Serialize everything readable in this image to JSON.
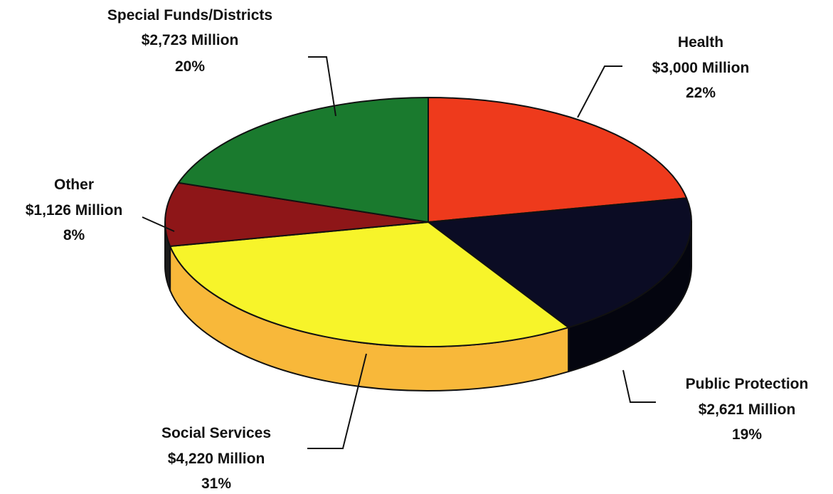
{
  "chart_data": {
    "type": "pie",
    "style": "3d",
    "categories": [
      "Health",
      "Public Protection",
      "Social Services",
      "Other",
      "Special Funds/Districts"
    ],
    "values": [
      3000,
      2621,
      4220,
      1126,
      2723
    ],
    "percents": [
      22,
      19,
      31,
      8,
      20
    ],
    "unit": "Million",
    "legend": "none",
    "colors": {
      "Health": "#ee3a1c",
      "Public Protection": "#0b0c24",
      "Social Services": "#f7f42a",
      "Other": "#8e1618",
      "Special Funds/Districts": "#1a7a2e"
    },
    "side_colors": {
      "Social Services": "#f8b83a",
      "Public Protection": "#04050f",
      "Other": "#1b1b1b"
    },
    "labels": [
      {
        "name": "Health",
        "amount": "$3,000 Million",
        "percent": "22%"
      },
      {
        "name": "Public Protection",
        "amount": "$2,621 Million",
        "percent": "19%"
      },
      {
        "name": "Social Services",
        "amount": "$4,220 Million",
        "percent": "31%"
      },
      {
        "name": "Other",
        "amount": "$1,126 Million",
        "percent": "8%"
      },
      {
        "name": "Special Funds/Districts",
        "amount": "$2,723 Million",
        "percent": "20%"
      }
    ]
  }
}
